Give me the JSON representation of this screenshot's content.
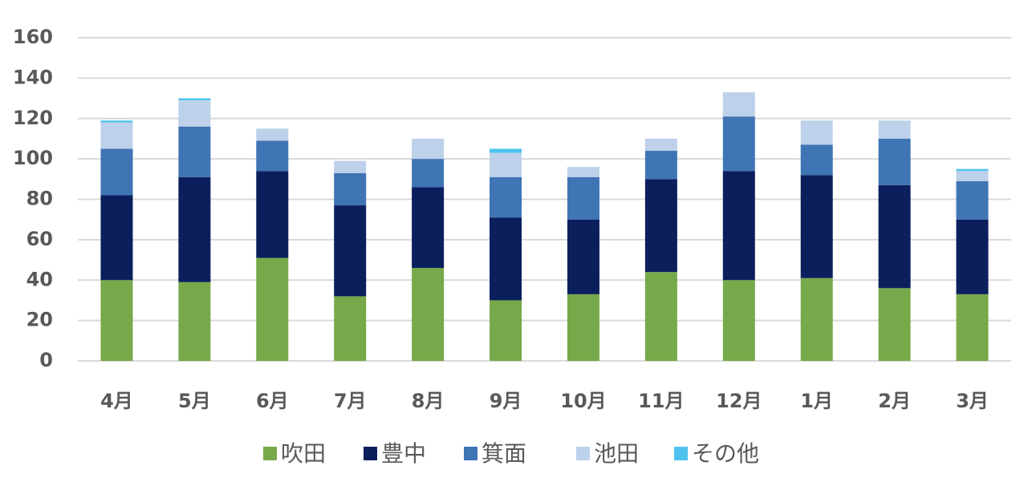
{
  "chart_data": {
    "type": "stacked_bar",
    "categories": [
      "4月",
      "5月",
      "6月",
      "7月",
      "8月",
      "9月",
      "10月",
      "11月",
      "12月",
      "1月",
      "2月",
      "3月"
    ],
    "series": [
      {
        "name": "吹田",
        "color": "#77a94a",
        "values": [
          40,
          39,
          51,
          32,
          46,
          30,
          33,
          44,
          40,
          41,
          36,
          33
        ]
      },
      {
        "name": "豊中",
        "color": "#0b1f5c",
        "values": [
          42,
          52,
          43,
          45,
          40,
          41,
          37,
          46,
          54,
          51,
          51,
          37
        ]
      },
      {
        "name": "箕面",
        "color": "#3f74b5",
        "values": [
          23,
          25,
          15,
          16,
          14,
          20,
          21,
          14,
          27,
          15,
          23,
          19
        ]
      },
      {
        "name": "池田",
        "color": "#bdd1ea",
        "values": [
          13,
          13,
          6,
          6,
          10,
          12,
          5,
          6,
          12,
          12,
          9,
          5
        ]
      },
      {
        "name": "その他",
        "color": "#4fc3ef",
        "values": [
          1,
          1,
          0,
          0,
          0,
          2,
          0,
          0,
          0,
          0,
          0,
          1
        ]
      }
    ],
    "ylim": [
      0,
      160
    ],
    "yticks": [
      0,
      20,
      40,
      60,
      80,
      100,
      120,
      140,
      160
    ],
    "grid": true,
    "legend": "bottom"
  }
}
